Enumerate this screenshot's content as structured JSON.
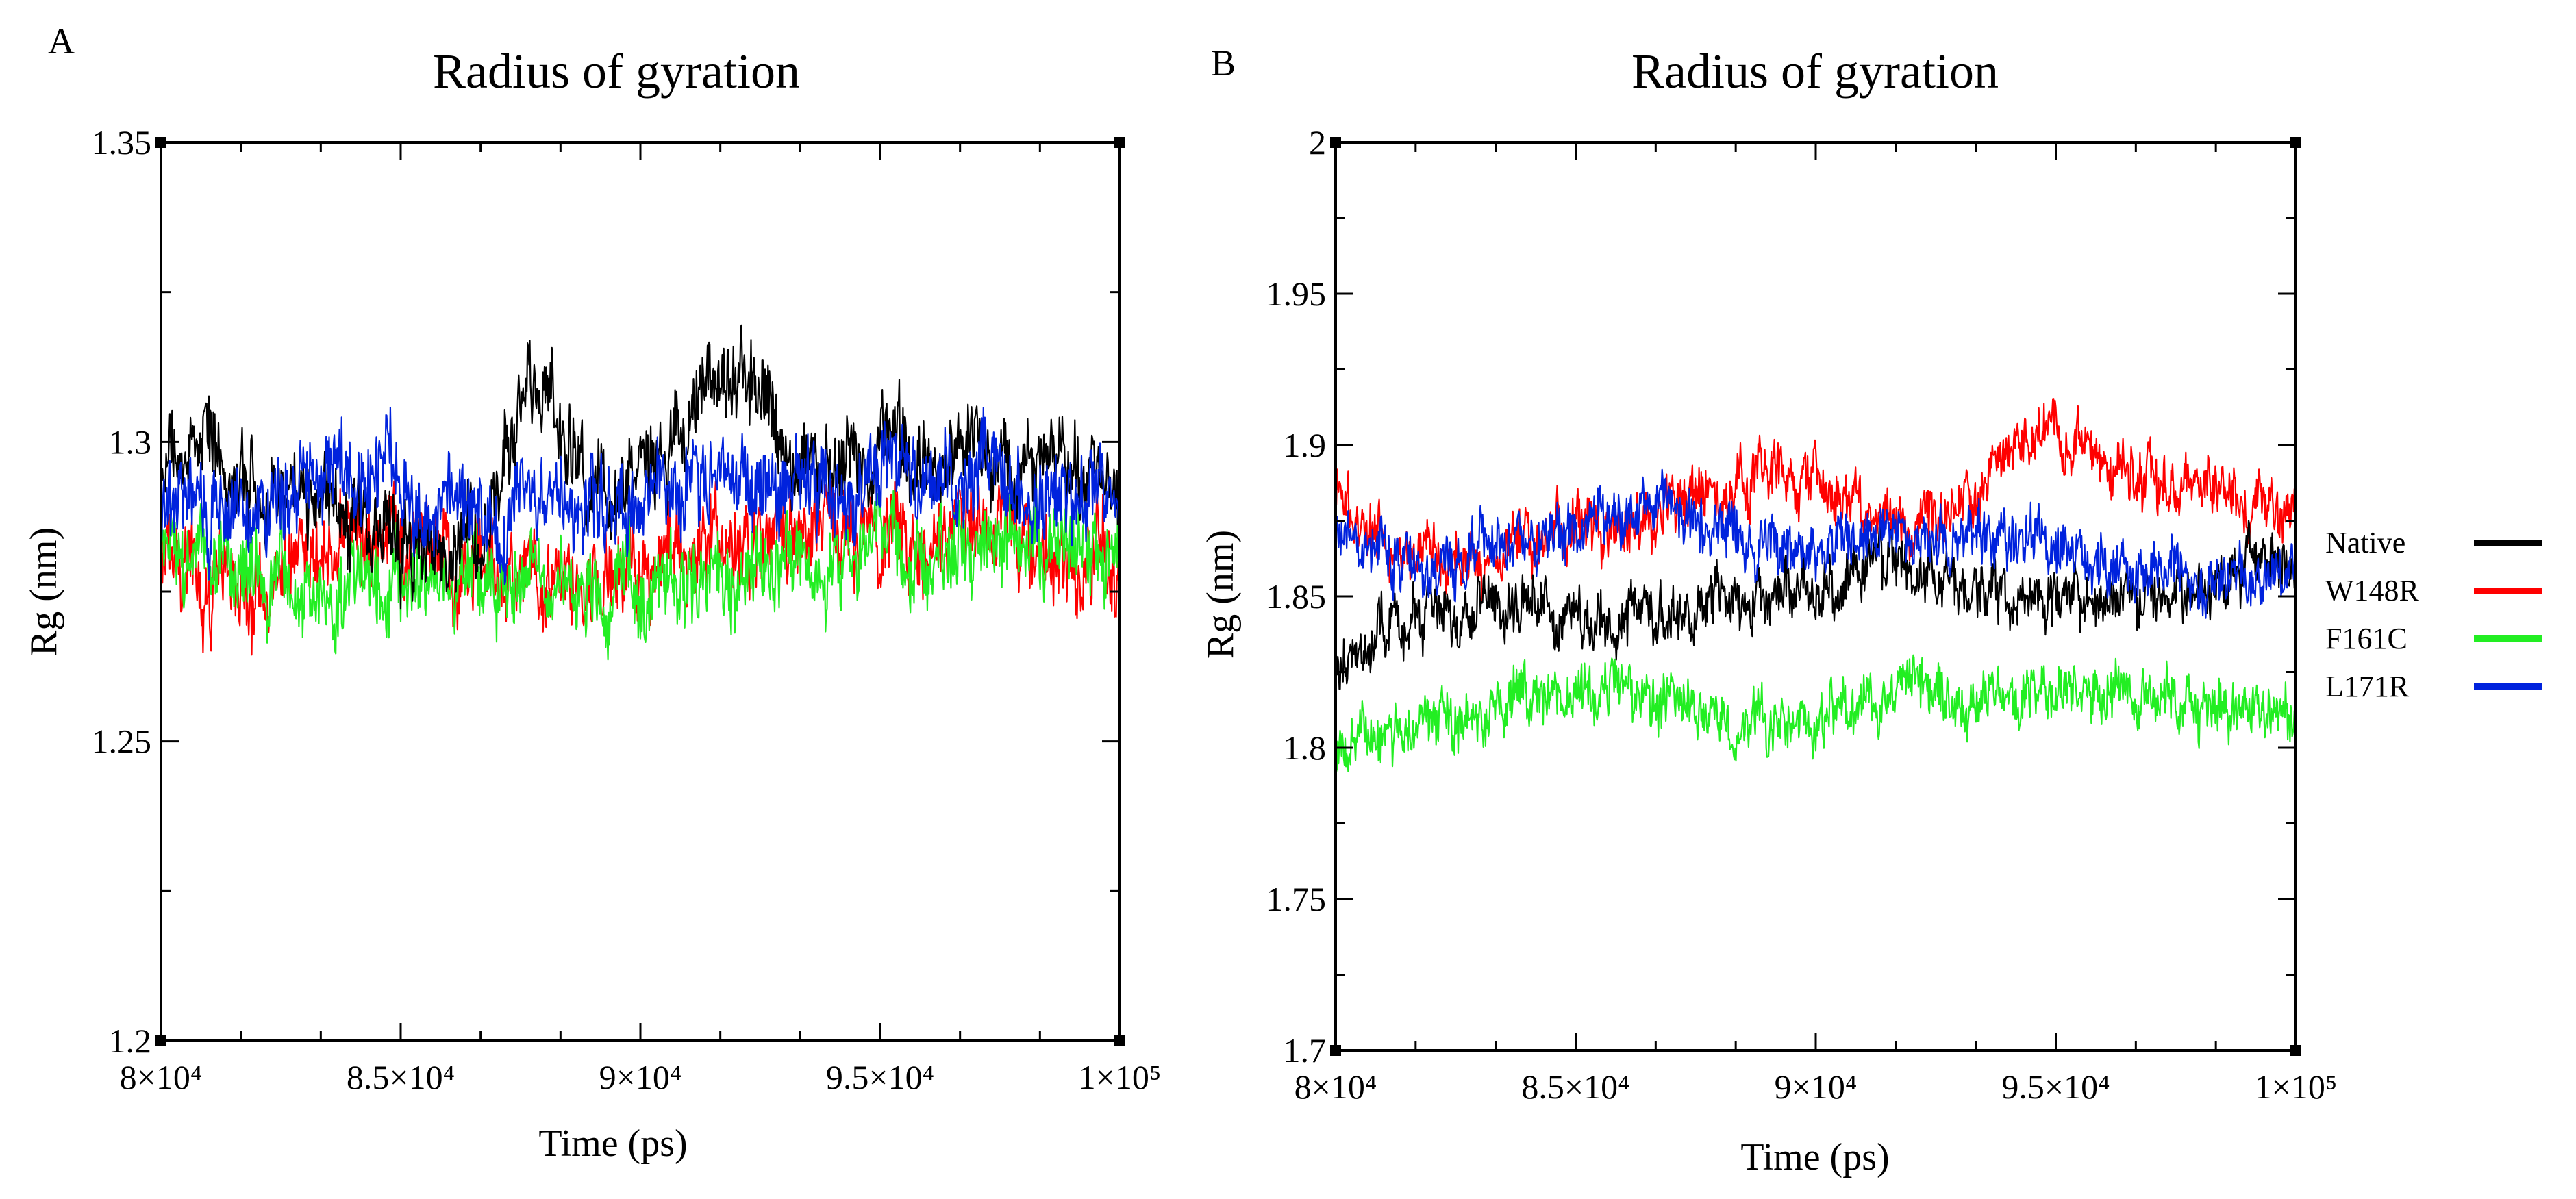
{
  "chart_data": [
    {
      "type": "line",
      "panel": "A",
      "title": "Radius of gyration",
      "xlabel": "Time (ps)",
      "ylabel": "Rg (nm)",
      "xlim": [
        80000,
        100000
      ],
      "ylim": [
        1.2,
        1.35
      ],
      "x_ticks": [
        80000,
        85000,
        90000,
        95000,
        100000
      ],
      "x_tick_labels": [
        "8×10⁴",
        "8.5×10⁴",
        "9×10⁴",
        "9.5×10⁴",
        "1×10⁵"
      ],
      "y_ticks": [
        1.2,
        1.25,
        1.3,
        1.35
      ],
      "y_tick_labels": [
        "1.2",
        "1.25",
        "1.3",
        "1.35"
      ],
      "series": [
        {
          "name": "Native",
          "color": "#000000",
          "x": [
            80000,
            81000,
            82000,
            83000,
            84000,
            85000,
            86000,
            87000,
            87500,
            88000,
            88500,
            89000,
            90000,
            91000,
            91500,
            92000,
            92500,
            93000,
            94000,
            95000,
            96000,
            97000,
            98000,
            99000,
            100000
          ],
          "values": [
            1.3,
            1.297,
            1.292,
            1.29,
            1.288,
            1.284,
            1.28,
            1.292,
            1.305,
            1.31,
            1.302,
            1.29,
            1.295,
            1.305,
            1.31,
            1.312,
            1.305,
            1.298,
            1.296,
            1.298,
            1.295,
            1.3,
            1.298,
            1.297,
            1.296
          ]
        },
        {
          "name": "W148R",
          "color": "#ff0000",
          "x": [
            80000,
            81000,
            82000,
            83000,
            84000,
            85000,
            86000,
            87000,
            88000,
            89000,
            90000,
            91000,
            92000,
            93000,
            94000,
            95000,
            96000,
            97000,
            98000,
            99000,
            100000
          ],
          "values": [
            1.28,
            1.275,
            1.276,
            1.28,
            1.283,
            1.285,
            1.28,
            1.276,
            1.274,
            1.278,
            1.28,
            1.282,
            1.283,
            1.284,
            1.285,
            1.285,
            1.284,
            1.286,
            1.284,
            1.28,
            1.279
          ]
        },
        {
          "name": "F161C",
          "color": "#22ee22",
          "x": [
            80000,
            81000,
            82000,
            83000,
            84000,
            85000,
            86000,
            87000,
            88000,
            89000,
            90000,
            91000,
            92000,
            93000,
            94000,
            95000,
            96000,
            97000,
            98000,
            99000,
            100000
          ],
          "values": [
            1.281,
            1.279,
            1.276,
            1.275,
            1.276,
            1.277,
            1.278,
            1.277,
            1.276,
            1.277,
            1.275,
            1.275,
            1.278,
            1.28,
            1.28,
            1.282,
            1.281,
            1.284,
            1.282,
            1.281,
            1.28
          ]
        },
        {
          "name": "L171R",
          "color": "#0022dd",
          "x": [
            80000,
            81000,
            82000,
            83000,
            84000,
            85000,
            86000,
            87000,
            88000,
            89000,
            90000,
            91000,
            92000,
            93000,
            94000,
            95000,
            96000,
            97000,
            98000,
            99000,
            100000
          ],
          "values": [
            1.288,
            1.29,
            1.291,
            1.292,
            1.295,
            1.293,
            1.288,
            1.287,
            1.29,
            1.29,
            1.29,
            1.293,
            1.295,
            1.293,
            1.292,
            1.295,
            1.294,
            1.293,
            1.291,
            1.291,
            1.29
          ]
        }
      ]
    },
    {
      "type": "line",
      "panel": "B",
      "title": "Radius of gyration",
      "xlabel": "Time (ps)",
      "ylabel": "Rg (nm)",
      "xlim": [
        80000,
        100000
      ],
      "ylim": [
        1.7,
        2.0
      ],
      "x_ticks": [
        80000,
        85000,
        90000,
        95000,
        100000
      ],
      "x_tick_labels": [
        "8×10⁴",
        "8.5×10⁴",
        "9×10⁴",
        "9.5×10⁴",
        "1×10⁵"
      ],
      "y_ticks": [
        1.7,
        1.75,
        1.8,
        1.85,
        1.9,
        1.95,
        2.0
      ],
      "y_tick_labels": [
        "1.7",
        "1.75",
        "1.8",
        "1.85",
        "1.9",
        "1.95",
        "2"
      ],
      "legend_position": "right",
      "series": [
        {
          "name": "Native",
          "color": "#000000",
          "x": [
            80000,
            81000,
            82000,
            83000,
            84000,
            85000,
            86000,
            87000,
            88000,
            89000,
            90000,
            91000,
            92000,
            93000,
            94000,
            95000,
            96000,
            97000,
            98000,
            99000,
            100000
          ],
          "values": [
            1.825,
            1.84,
            1.848,
            1.848,
            1.845,
            1.842,
            1.842,
            1.845,
            1.848,
            1.85,
            1.852,
            1.86,
            1.858,
            1.855,
            1.85,
            1.852,
            1.85,
            1.852,
            1.85,
            1.862,
            1.858
          ]
        },
        {
          "name": "W148R",
          "color": "#ff0000",
          "x": [
            80000,
            81000,
            82000,
            83000,
            84000,
            85000,
            86000,
            87000,
            88000,
            89000,
            90000,
            91000,
            92000,
            93000,
            94000,
            95000,
            96000,
            97000,
            98000,
            99000,
            100000
          ],
          "values": [
            1.88,
            1.87,
            1.865,
            1.86,
            1.87,
            1.875,
            1.872,
            1.88,
            1.885,
            1.89,
            1.885,
            1.88,
            1.875,
            1.88,
            1.895,
            1.905,
            1.895,
            1.888,
            1.885,
            1.88,
            1.878
          ]
        },
        {
          "name": "F161C",
          "color": "#22ee22",
          "x": [
            80000,
            81000,
            82000,
            83000,
            84000,
            85000,
            86000,
            87000,
            88000,
            89000,
            90000,
            91000,
            92000,
            93000,
            94000,
            95000,
            96000,
            97000,
            98000,
            99000,
            100000
          ],
          "values": [
            1.8,
            1.805,
            1.81,
            1.815,
            1.818,
            1.82,
            1.818,
            1.815,
            1.812,
            1.81,
            1.808,
            1.815,
            1.82,
            1.815,
            1.815,
            1.818,
            1.82,
            1.818,
            1.815,
            1.812,
            1.812
          ]
        },
        {
          "name": "L171R",
          "color": "#0022dd",
          "x": [
            80000,
            81000,
            82000,
            83000,
            84000,
            85000,
            86000,
            87000,
            88000,
            89000,
            90000,
            91000,
            92000,
            93000,
            94000,
            95000,
            96000,
            97000,
            98000,
            99000,
            100000
          ],
          "values": [
            1.87,
            1.865,
            1.86,
            1.865,
            1.87,
            1.872,
            1.875,
            1.88,
            1.87,
            1.868,
            1.865,
            1.868,
            1.87,
            1.872,
            1.868,
            1.865,
            1.86,
            1.858,
            1.855,
            1.858,
            1.86
          ]
        }
      ]
    }
  ]
}
